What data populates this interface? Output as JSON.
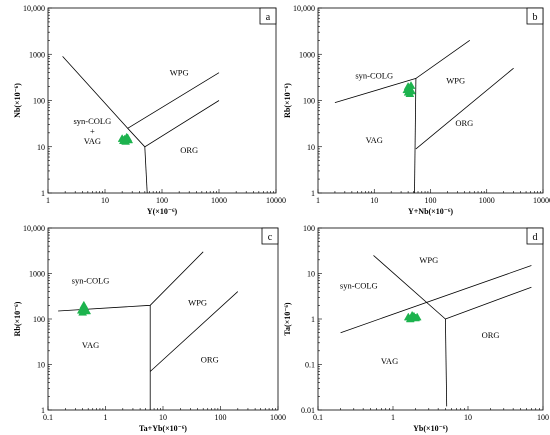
{
  "chart_data": [
    {
      "id": "a",
      "type": "scatter",
      "panel_label": "a",
      "xlabel": "Y(×10⁻⁶)",
      "ylabel": "Nb(×10⁻⁶)",
      "x_scale": "log",
      "y_scale": "log",
      "xlim": [
        1,
        10000
      ],
      "ylim": [
        1,
        10000
      ],
      "x_ticks": [
        {
          "v": 1,
          "t": "1"
        },
        {
          "v": 10,
          "t": "10"
        },
        {
          "v": 100,
          "t": "100"
        },
        {
          "v": 1000,
          "t": "1000"
        },
        {
          "v": 10000,
          "t": "10000"
        }
      ],
      "y_ticks": [
        {
          "v": 1,
          "t": "1"
        },
        {
          "v": 10,
          "t": "10"
        },
        {
          "v": 100,
          "t": "100"
        },
        {
          "v": 1000,
          "t": "1000"
        },
        {
          "v": 10000,
          "t": "10,000"
        }
      ],
      "boundaries": [
        [
          [
            1.8,
            900
          ],
          [
            25,
            25
          ],
          [
            50,
            10
          ],
          [
            1000,
            100
          ]
        ],
        [
          [
            25,
            25
          ],
          [
            1000,
            400
          ]
        ],
        [
          [
            50,
            10
          ],
          [
            55,
            1
          ]
        ]
      ],
      "fields": [
        {
          "name": "WPG",
          "text": [
            "WPG"
          ],
          "x": 200,
          "y": 400
        },
        {
          "name": "syn-COLG + VAG",
          "text": [
            "syn-COLG",
            "+",
            "VAG"
          ],
          "x": 6,
          "y": 22
        },
        {
          "name": "ORG",
          "text": [
            "ORG"
          ],
          "x": 300,
          "y": 8.5
        }
      ],
      "points": [
        [
          20,
          15
        ],
        [
          22,
          14.5
        ],
        [
          24,
          16
        ],
        [
          26,
          14
        ],
        [
          21,
          13.5
        ],
        [
          25,
          15.5
        ],
        [
          23,
          13
        ]
      ],
      "point_color": "#1db34e"
    },
    {
      "id": "b",
      "type": "scatter",
      "panel_label": "b",
      "xlabel": "Y+Nb(×10⁻⁶)",
      "ylabel": "Rb(×10⁻⁶)",
      "x_scale": "log",
      "y_scale": "log",
      "xlim": [
        1,
        10000
      ],
      "ylim": [
        1,
        10000
      ],
      "x_ticks": [
        {
          "v": 1,
          "t": "1"
        },
        {
          "v": 10,
          "t": "10"
        },
        {
          "v": 100,
          "t": "100"
        },
        {
          "v": 1000,
          "t": "1000"
        },
        {
          "v": 10000,
          "t": "10000"
        }
      ],
      "y_ticks": [
        {
          "v": 1,
          "t": "1"
        },
        {
          "v": 10,
          "t": "10"
        },
        {
          "v": 100,
          "t": "100"
        },
        {
          "v": 1000,
          "t": "1000"
        },
        {
          "v": 10000,
          "t": "10,000"
        }
      ],
      "boundaries": [
        [
          [
            2,
            90
          ],
          [
            55,
            300
          ],
          [
            500,
            2000
          ]
        ],
        [
          [
            55,
            300
          ],
          [
            52,
            1
          ]
        ],
        [
          [
            55,
            9
          ],
          [
            3000,
            500
          ]
        ]
      ],
      "fields": [
        {
          "name": "syn-COLG",
          "text": [
            "syn-COLG"
          ],
          "x": 10,
          "y": 350
        },
        {
          "name": "WPG",
          "text": [
            "WPG"
          ],
          "x": 280,
          "y": 270
        },
        {
          "name": "VAG",
          "text": [
            "VAG"
          ],
          "x": 10,
          "y": 14
        },
        {
          "name": "ORG",
          "text": [
            "ORG"
          ],
          "x": 400,
          "y": 33
        }
      ],
      "points": [
        [
          40,
          200
        ],
        [
          42,
          180
        ],
        [
          45,
          210
        ],
        [
          40,
          150
        ],
        [
          43,
          140
        ],
        [
          38,
          170
        ],
        [
          46,
          160
        ]
      ],
      "point_color": "#1db34e"
    },
    {
      "id": "c",
      "type": "scatter",
      "panel_label": "c",
      "xlabel": "Ta+Yb(×10⁻⁶)",
      "ylabel": "Rb(×10⁻⁶)",
      "x_scale": "log",
      "y_scale": "log",
      "xlim": [
        0.1,
        1000
      ],
      "ylim": [
        1,
        10000
      ],
      "x_ticks": [
        {
          "v": 0.1,
          "t": "0.1"
        },
        {
          "v": 1,
          "t": "1"
        },
        {
          "v": 10,
          "t": "10"
        },
        {
          "v": 100,
          "t": "100"
        },
        {
          "v": 1000,
          "t": "1000"
        }
      ],
      "y_ticks": [
        {
          "v": 1,
          "t": "1"
        },
        {
          "v": 10,
          "t": "10"
        },
        {
          "v": 100,
          "t": "100"
        },
        {
          "v": 1000,
          "t": "1000"
        },
        {
          "v": 10000,
          "t": "10,000"
        }
      ],
      "boundaries": [
        [
          [
            0.15,
            150
          ],
          [
            6,
            200
          ],
          [
            50,
            3000
          ]
        ],
        [
          [
            6,
            200
          ],
          [
            6,
            1
          ]
        ],
        [
          [
            6,
            7
          ],
          [
            200,
            400
          ]
        ]
      ],
      "fields": [
        {
          "name": "syn-COLG",
          "text": [
            "syn-COLG"
          ],
          "x": 0.55,
          "y": 700
        },
        {
          "name": "WPG",
          "text": [
            "WPG"
          ],
          "x": 40,
          "y": 230
        },
        {
          "name": "VAG",
          "text": [
            "VAG"
          ],
          "x": 0.55,
          "y": 27
        },
        {
          "name": "ORG",
          "text": [
            "ORG"
          ],
          "x": 65,
          "y": 13
        }
      ],
      "points": [
        [
          0.4,
          170
        ],
        [
          0.42,
          200
        ],
        [
          0.45,
          160
        ],
        [
          0.4,
          140
        ],
        [
          0.43,
          180
        ],
        [
          0.47,
          150
        ],
        [
          0.38,
          155
        ]
      ],
      "point_color": "#1db34e"
    },
    {
      "id": "d",
      "type": "scatter",
      "panel_label": "d",
      "xlabel": "Yb(×10⁻⁶)",
      "ylabel": "Ta(×10⁻⁶)",
      "x_scale": "log",
      "y_scale": "log",
      "xlim": [
        0.1,
        100
      ],
      "ylim": [
        0.01,
        100
      ],
      "x_ticks": [
        {
          "v": 0.1,
          "t": "0.1"
        },
        {
          "v": 1,
          "t": "1"
        },
        {
          "v": 10,
          "t": "10"
        },
        {
          "v": 100,
          "t": "100"
        }
      ],
      "y_ticks": [
        {
          "v": 0.01,
          "t": "0.01"
        },
        {
          "v": 0.1,
          "t": "0.1"
        },
        {
          "v": 1,
          "t": "1"
        },
        {
          "v": 10,
          "t": "10"
        },
        {
          "v": 100,
          "t": "100"
        }
      ],
      "boundaries": [
        [
          [
            0.55,
            25
          ],
          [
            5,
            1
          ]
        ],
        [
          [
            0.2,
            0.5
          ],
          [
            70,
            15
          ]
        ],
        [
          [
            5,
            1
          ],
          [
            70,
            5
          ]
        ],
        [
          [
            5,
            1
          ],
          [
            5.2,
            0.012
          ]
        ]
      ],
      "fields": [
        {
          "name": "WPG",
          "text": [
            "WPG"
          ],
          "x": 3,
          "y": 20
        },
        {
          "name": "syn-COLG",
          "text": [
            "syn-COLG"
          ],
          "x": 0.35,
          "y": 5.5
        },
        {
          "name": "ORG",
          "text": [
            "ORG"
          ],
          "x": 20,
          "y": 0.45
        },
        {
          "name": "VAG",
          "text": [
            "VAG"
          ],
          "x": 0.9,
          "y": 0.12
        }
      ],
      "points": [
        [
          1.6,
          1.1
        ],
        [
          1.8,
          1.2
        ],
        [
          2.0,
          1.05
        ],
        [
          1.7,
          1.0
        ],
        [
          1.9,
          1.15
        ],
        [
          2.1,
          1.1
        ]
      ],
      "point_color": "#1db34e"
    }
  ]
}
